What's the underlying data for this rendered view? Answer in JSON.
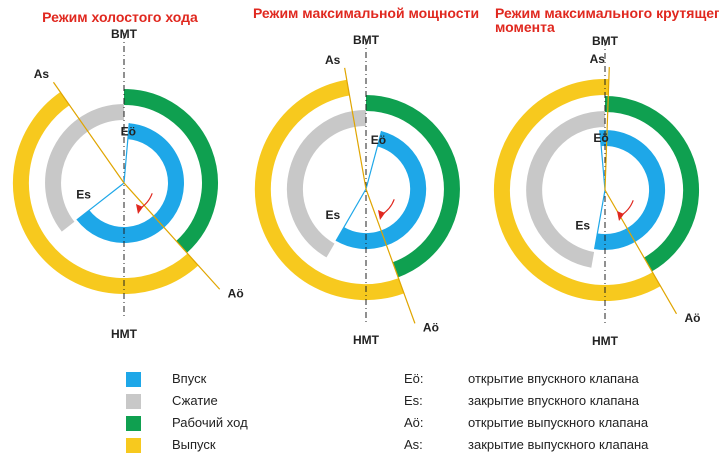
{
  "colors": {
    "intake": "#1ea7e8",
    "compression": "#c8c8c8",
    "power": "#0fa050",
    "exhaust": "#f7c91e",
    "title": "#e0281f"
  },
  "diagrams": [
    {
      "title": "Режим холостого хода",
      "tdc": "ВМТ",
      "bdc": "НМТ",
      "eo": "Eö",
      "es": "Es",
      "ao": "Aö",
      "as": "As",
      "angles": {
        "eo": 5,
        "es": 232,
        "ao": 138,
        "as": -35,
        "power_start": 0,
        "power_end": 138
      }
    },
    {
      "title": "Режим максимальной мощности",
      "tdc": "ВМТ",
      "bdc": "НМТ",
      "eo": "Eö",
      "es": "Es",
      "ao": "Aö",
      "as": "As",
      "angles": {
        "eo": 15,
        "es": 210,
        "ao": 160,
        "as": -10,
        "power_start": 0,
        "power_end": 160
      }
    },
    {
      "title": "Режим максимального крутящего момента",
      "tdc": "ВМТ",
      "bdc": "НМТ",
      "eo": "Eö",
      "es": "Es",
      "ao": "Aö",
      "as": "As",
      "angles": {
        "eo": -5,
        "es": 190,
        "ao": 150,
        "as": 2,
        "power_start": 0,
        "power_end": 150
      }
    }
  ],
  "legend": {
    "phases": [
      {
        "label": "Впуск",
        "color": "#1ea7e8"
      },
      {
        "label": "Сжатие",
        "color": "#c8c8c8"
      },
      {
        "label": "Рабочий ход",
        "color": "#0fa050"
      },
      {
        "label": "Выпуск",
        "color": "#f7c91e"
      }
    ],
    "events": [
      {
        "key": "Eö:",
        "text": "открытие впускного клапана"
      },
      {
        "key": "Es:",
        "text": "закрытие впускного клапана"
      },
      {
        "key": "Aö:",
        "text": "открытие выпускного клапана"
      },
      {
        "key": "As:",
        "text": "закрытие выпускного клапана"
      }
    ]
  }
}
